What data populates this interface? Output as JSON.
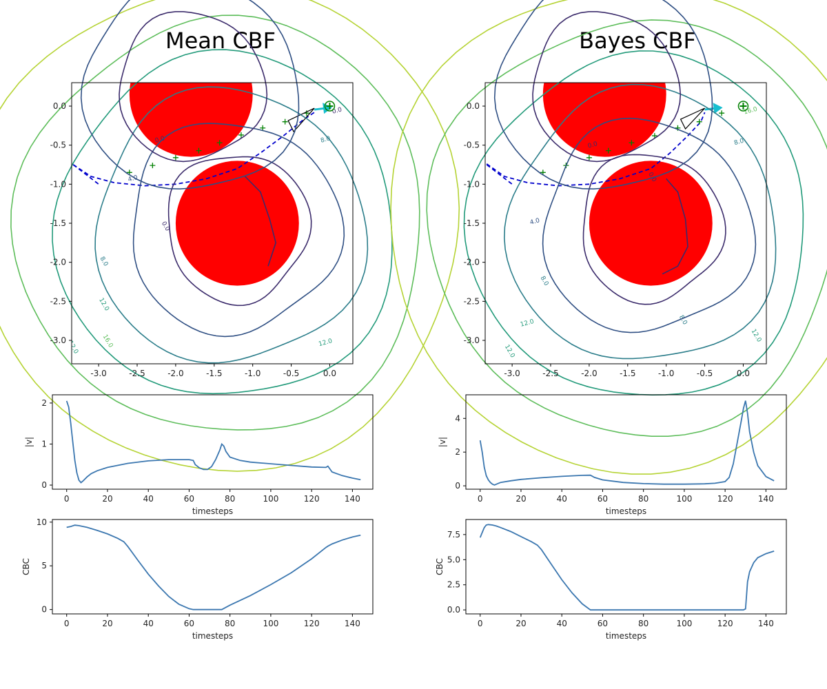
{
  "titles": {
    "left": "Mean CBF",
    "right": "Bayes CBF"
  },
  "colors": {
    "obstacle": "#ff0000",
    "trajectory": "#0000cc",
    "marker": "#008000",
    "arrow": "#17becf",
    "line": "#3a76af",
    "contour_levels": [
      "#3b2b6b",
      "#2f4f83",
      "#2b7d8a",
      "#229a7a",
      "#5dbd5a",
      "#b5d334"
    ]
  },
  "chart_data": [
    {
      "id": "mean-map",
      "type": "contour",
      "title": "Mean CBF",
      "xlim": [
        -3.35,
        0.3
      ],
      "ylim": [
        -3.3,
        0.3
      ],
      "xticks": [
        -3.0,
        -2.5,
        -2.0,
        -1.5,
        -1.0,
        -0.5,
        0.0
      ],
      "yticks": [
        0.0,
        -0.5,
        -1.0,
        -1.5,
        -2.0,
        -2.5,
        -3.0
      ],
      "obstacles": [
        {
          "cx": -1.8,
          "cy": 0.15,
          "r": 0.8
        },
        {
          "cx": -1.2,
          "cy": -1.5,
          "r": 0.8
        }
      ],
      "contour_labels": [
        "0.0",
        "0.0",
        "4.0",
        "8.0",
        "8.0",
        "12.0",
        "12.0",
        "16.0",
        "0.0",
        "12.0"
      ],
      "waypoints": [
        [
          -2.6,
          -0.85
        ],
        [
          -2.3,
          -0.76
        ],
        [
          -2.0,
          -0.66
        ],
        [
          -1.7,
          -0.57
        ],
        [
          -1.43,
          -0.47
        ],
        [
          -1.15,
          -0.37
        ],
        [
          -0.87,
          -0.28
        ],
        [
          -0.58,
          -0.2
        ],
        [
          -0.3,
          -0.09
        ]
      ],
      "trajectory": [
        [
          -3.33,
          -0.75
        ],
        [
          -3.1,
          -0.9
        ],
        [
          -2.8,
          -0.98
        ],
        [
          -2.4,
          -1.02
        ],
        [
          -2.0,
          -1.0
        ],
        [
          -1.6,
          -0.93
        ],
        [
          -1.2,
          -0.8
        ],
        [
          -0.9,
          -0.6
        ],
        [
          -0.6,
          -0.38
        ],
        [
          -0.35,
          -0.18
        ],
        [
          -0.2,
          -0.08
        ]
      ],
      "goal": [
        0.0,
        0.0
      ]
    },
    {
      "id": "bayes-map",
      "type": "contour",
      "title": "Bayes CBF",
      "xlim": [
        -3.35,
        0.3
      ],
      "ylim": [
        -3.3,
        0.3
      ],
      "xticks": [
        -3.0,
        -2.5,
        -2.0,
        -1.5,
        -1.0,
        -0.5,
        0.0
      ],
      "yticks": [
        0.0,
        -0.5,
        -1.0,
        -1.5,
        -2.0,
        -2.5,
        -3.0
      ],
      "obstacles": [
        {
          "cx": -1.8,
          "cy": 0.15,
          "r": 0.8
        },
        {
          "cx": -1.2,
          "cy": -1.5,
          "r": 0.8
        }
      ],
      "contour_labels": [
        "0.0",
        "0.0",
        "4.0",
        "8.0",
        "8.0",
        "8.0",
        "12.0",
        "12.0",
        "16.0",
        "12.0"
      ],
      "waypoints": [
        [
          -2.6,
          -0.85
        ],
        [
          -2.3,
          -0.76
        ],
        [
          -2.0,
          -0.66
        ],
        [
          -1.75,
          -0.57
        ],
        [
          -1.45,
          -0.47
        ],
        [
          -1.15,
          -0.38
        ],
        [
          -0.85,
          -0.28
        ],
        [
          -0.57,
          -0.2
        ],
        [
          -0.28,
          -0.09
        ]
      ],
      "trajectory": [
        [
          -3.33,
          -0.74
        ],
        [
          -3.1,
          -0.9
        ],
        [
          -2.8,
          -0.98
        ],
        [
          -2.4,
          -1.02
        ],
        [
          -2.0,
          -1.0
        ],
        [
          -1.6,
          -0.93
        ],
        [
          -1.2,
          -0.8
        ],
        [
          -0.95,
          -0.6
        ],
        [
          -0.72,
          -0.38
        ],
        [
          -0.55,
          -0.2
        ],
        [
          -0.5,
          -0.08
        ]
      ],
      "goal": [
        0.0,
        0.0
      ]
    },
    {
      "id": "mean-v",
      "type": "line",
      "xlabel": "timesteps",
      "ylabel": "|v|",
      "xlim": [
        -7,
        150
      ],
      "ylim": [
        -0.1,
        2.2
      ],
      "xticks": [
        0,
        20,
        40,
        60,
        80,
        100,
        120,
        140
      ],
      "yticks": [
        0,
        1,
        2
      ],
      "x": [
        0,
        1,
        2,
        3,
        4,
        5,
        6,
        7,
        8,
        10,
        12,
        15,
        20,
        30,
        40,
        50,
        60,
        62,
        63,
        65,
        67,
        69,
        71,
        73,
        75,
        76,
        77,
        78,
        80,
        85,
        90,
        100,
        110,
        120,
        127,
        128,
        130,
        135,
        140,
        144
      ],
      "y": [
        2.05,
        1.9,
        1.5,
        1.05,
        0.6,
        0.3,
        0.12,
        0.06,
        0.1,
        0.2,
        0.28,
        0.35,
        0.43,
        0.53,
        0.59,
        0.62,
        0.62,
        0.6,
        0.5,
        0.42,
        0.38,
        0.38,
        0.45,
        0.62,
        0.85,
        1.0,
        0.95,
        0.82,
        0.68,
        0.6,
        0.56,
        0.52,
        0.48,
        0.44,
        0.43,
        0.46,
        0.32,
        0.23,
        0.17,
        0.13
      ]
    },
    {
      "id": "bayes-v",
      "type": "line",
      "xlabel": "timesteps",
      "ylabel": "|v|",
      "xlim": [
        -7,
        150
      ],
      "ylim": [
        -0.2,
        5.4
      ],
      "xticks": [
        0,
        20,
        40,
        60,
        80,
        100,
        120,
        140
      ],
      "yticks": [
        0,
        2,
        4
      ],
      "x": [
        0,
        1,
        2,
        3,
        4,
        5,
        6,
        7,
        8,
        10,
        15,
        20,
        30,
        40,
        50,
        54,
        56,
        60,
        70,
        80,
        90,
        100,
        110,
        115,
        120,
        122,
        124,
        126,
        128,
        129,
        130,
        131,
        132,
        134,
        136,
        140,
        144
      ],
      "y": [
        2.7,
        2.0,
        1.1,
        0.6,
        0.35,
        0.2,
        0.1,
        0.05,
        0.1,
        0.2,
        0.3,
        0.38,
        0.48,
        0.56,
        0.62,
        0.63,
        0.5,
        0.35,
        0.2,
        0.13,
        0.1,
        0.1,
        0.12,
        0.15,
        0.25,
        0.5,
        1.3,
        2.6,
        3.9,
        4.6,
        5.05,
        4.3,
        3.2,
        2.0,
        1.2,
        0.55,
        0.3
      ]
    },
    {
      "id": "mean-cbc",
      "type": "line",
      "xlabel": "timesteps",
      "ylabel": "CBC",
      "xlim": [
        -7,
        150
      ],
      "ylim": [
        -0.5,
        10.3
      ],
      "xticks": [
        0,
        20,
        40,
        60,
        80,
        100,
        120,
        140
      ],
      "yticks": [
        0,
        5,
        10
      ],
      "x": [
        0,
        2,
        4,
        6,
        10,
        15,
        20,
        25,
        28,
        30,
        35,
        40,
        45,
        50,
        55,
        60,
        62,
        65,
        70,
        76,
        80,
        90,
        100,
        110,
        120,
        127,
        128,
        130,
        135,
        140,
        144
      ],
      "y": [
        9.4,
        9.5,
        9.65,
        9.6,
        9.4,
        9.05,
        8.65,
        8.15,
        7.75,
        7.2,
        5.6,
        4.05,
        2.7,
        1.5,
        0.6,
        0.1,
        0.0,
        0.0,
        0.0,
        0.0,
        0.5,
        1.6,
        2.85,
        4.2,
        5.8,
        7.1,
        7.25,
        7.5,
        7.95,
        8.3,
        8.5
      ]
    },
    {
      "id": "bayes-cbc",
      "type": "line",
      "xlabel": "timesteps",
      "ylabel": "CBC",
      "xlim": [
        -7,
        150
      ],
      "ylim": [
        -0.4,
        9.0
      ],
      "xticks": [
        0,
        20,
        40,
        60,
        80,
        100,
        120,
        140
      ],
      "yticks": [
        0.0,
        2.5,
        5.0,
        7.5
      ],
      "yticklabels": [
        "0.0",
        "2.5",
        "5.0",
        "7.5"
      ],
      "x": [
        0,
        1,
        2,
        3,
        4,
        6,
        8,
        10,
        15,
        20,
        25,
        28,
        30,
        35,
        40,
        45,
        50,
        54,
        56,
        60,
        80,
        100,
        120,
        129,
        130,
        131,
        132,
        134,
        136,
        140,
        144
      ],
      "y": [
        7.2,
        7.7,
        8.2,
        8.45,
        8.5,
        8.45,
        8.35,
        8.2,
        7.8,
        7.3,
        6.8,
        6.45,
        6.0,
        4.5,
        3.0,
        1.7,
        0.6,
        0.0,
        0.0,
        0.0,
        0.0,
        0.0,
        0.0,
        0.0,
        0.1,
        2.8,
        3.8,
        4.7,
        5.2,
        5.6,
        5.85
      ]
    }
  ]
}
